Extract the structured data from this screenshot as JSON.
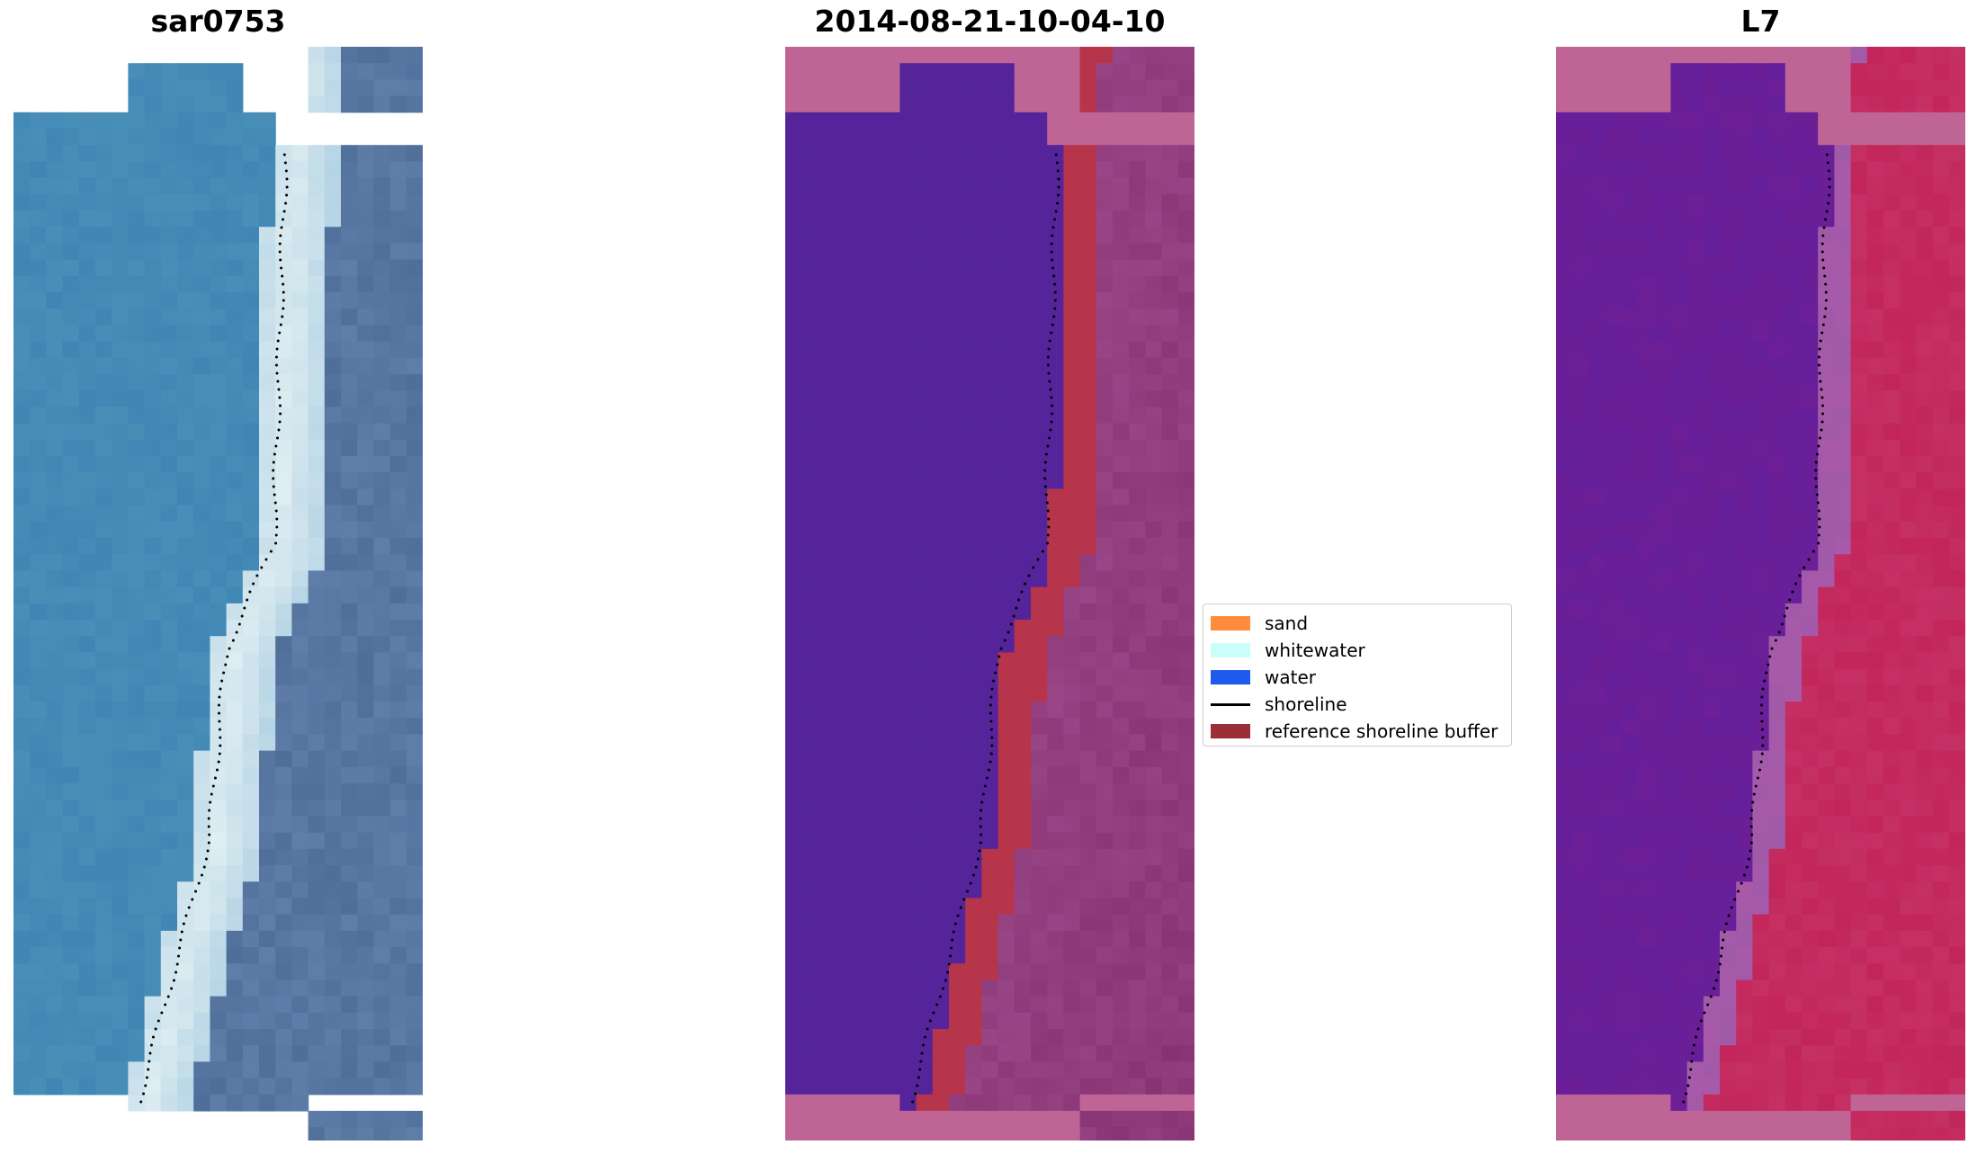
{
  "panels": [
    {
      "title": "sar0753",
      "kind": "rgb"
    },
    {
      "title": "2014-08-21-10-04-10",
      "kind": "classified"
    },
    {
      "title": "L7",
      "kind": "index"
    }
  ],
  "legend": {
    "items": [
      {
        "label": "sand",
        "color": "#ff8c3c",
        "type": "patch"
      },
      {
        "label": "whitewater",
        "color": "#c8fffa",
        "type": "patch"
      },
      {
        "label": "water",
        "color": "#1e5aeb",
        "type": "patch"
      },
      {
        "label": "shoreline",
        "color": "#000000",
        "type": "line"
      },
      {
        "label": "reference shoreline buffer",
        "color": "#9a3035",
        "type": "patch"
      }
    ]
  },
  "colors": {
    "rgb_water": "#3f86b5",
    "rgb_surf": "#dfeef2",
    "rgb_land": "#4f6f9a",
    "class_water": "#55249a",
    "class_buffer": "#b7354a",
    "class_land": "#8a3576",
    "class_nodata": "#bf6596",
    "index_water": "#6c1f96",
    "index_land": "#c2255a",
    "index_mid": "#a05aa8",
    "shoreline_dots": "#000000"
  }
}
